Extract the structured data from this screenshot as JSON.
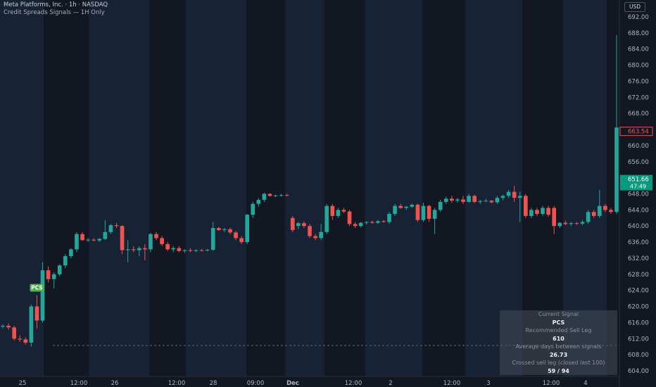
{
  "header": {
    "symbol_line": "Meta Platforms, Inc. · 1h · NASDAQ",
    "indicator_line": "Credit Spreads Signals — 1H Only",
    "currency": "USD"
  },
  "colors": {
    "background": "#131722",
    "shade_band": "#172235",
    "bull": "#26a69a",
    "bear": "#ef5350",
    "grid_text": "#b2b5be",
    "signal_badge": "#4caf50",
    "current_price_tag": "#089981",
    "high_price_tag": "#ef5350"
  },
  "signal_panel": {
    "current_signal_label": "Current Signal",
    "current_signal_value": "PCS",
    "sell_leg_label": "Recommended Sell Leg",
    "sell_leg_value": "610",
    "avg_days_label": "Average days between signals",
    "avg_days_value": "26.73",
    "crossed_label": "Crossed sell leg (closed last 100)",
    "crossed_value": "59 / 94"
  },
  "chart_data": {
    "type": "candlestick",
    "title": "Meta Platforms, Inc. · 1h · NASDAQ",
    "subtitle": "Credit Spreads Signals — 1H Only",
    "ylim": [
      603,
      695
    ],
    "y_ticks": [
      "604.00",
      "608.00",
      "612.00",
      "616.00",
      "620.00",
      "624.00",
      "628.00",
      "632.00",
      "636.00",
      "640.00",
      "644.00",
      "648.00",
      "652.00",
      "656.00",
      "660.00",
      "664.00",
      "668.00",
      "672.00",
      "676.00",
      "680.00",
      "684.00",
      "688.00",
      "692.00"
    ],
    "x_ticks": [
      "25",
      "12:00",
      "26",
      "12:00",
      "28",
      "09:00",
      "Dec",
      "12:00",
      "2",
      "12:00",
      "3",
      "12:00",
      "4"
    ],
    "candles": [
      {
        "o": 615.0,
        "h": 615.6,
        "l": 614.5,
        "c": 615.2
      },
      {
        "o": 615.2,
        "h": 615.8,
        "l": 614.2,
        "c": 614.8
      },
      {
        "o": 614.8,
        "h": 615.2,
        "l": 611.5,
        "c": 612.0
      },
      {
        "o": 612.0,
        "h": 612.8,
        "l": 611.2,
        "c": 611.8
      },
      {
        "o": 611.8,
        "h": 612.3,
        "l": 610.5,
        "c": 611.0
      },
      {
        "o": 611.0,
        "h": 620.5,
        "l": 610.0,
        "c": 620.0
      },
      {
        "o": 620.0,
        "h": 622.8,
        "l": 614.5,
        "c": 616.5
      },
      {
        "o": 616.5,
        "h": 631.0,
        "l": 616.0,
        "c": 629.0
      },
      {
        "o": 629.0,
        "h": 630.0,
        "l": 626.0,
        "c": 626.8
      },
      {
        "o": 626.8,
        "h": 628.5,
        "l": 624.5,
        "c": 628.0
      },
      {
        "o": 628.0,
        "h": 630.5,
        "l": 627.5,
        "c": 630.2
      },
      {
        "o": 630.2,
        "h": 633.0,
        "l": 629.5,
        "c": 632.5
      },
      {
        "o": 632.5,
        "h": 634.5,
        "l": 632.0,
        "c": 634.2
      },
      {
        "o": 634.2,
        "h": 638.5,
        "l": 633.5,
        "c": 638.0
      },
      {
        "o": 638.0,
        "h": 638.5,
        "l": 636.3,
        "c": 636.5
      },
      {
        "o": 636.5,
        "h": 637.0,
        "l": 636.0,
        "c": 636.6
      },
      {
        "o": 636.6,
        "h": 637.0,
        "l": 636.2,
        "c": 636.4
      },
      {
        "o": 636.4,
        "h": 637.0,
        "l": 636.0,
        "c": 636.8
      },
      {
        "o": 636.8,
        "h": 641.5,
        "l": 636.5,
        "c": 638.5
      },
      {
        "o": 638.5,
        "h": 640.5,
        "l": 638.0,
        "c": 640.2
      },
      {
        "o": 640.2,
        "h": 640.8,
        "l": 639.5,
        "c": 640.0
      },
      {
        "o": 640.0,
        "h": 640.2,
        "l": 633.0,
        "c": 634.0
      },
      {
        "o": 634.0,
        "h": 636.5,
        "l": 631.0,
        "c": 634.2
      },
      {
        "o": 634.2,
        "h": 635.0,
        "l": 633.5,
        "c": 634.0
      },
      {
        "o": 634.0,
        "h": 635.0,
        "l": 632.5,
        "c": 634.5
      },
      {
        "o": 634.5,
        "h": 635.5,
        "l": 631.5,
        "c": 634.2
      },
      {
        "o": 634.2,
        "h": 638.3,
        "l": 633.5,
        "c": 638.0
      },
      {
        "o": 638.0,
        "h": 638.5,
        "l": 636.5,
        "c": 637.0
      },
      {
        "o": 637.0,
        "h": 637.5,
        "l": 635.0,
        "c": 635.5
      },
      {
        "o": 635.5,
        "h": 636.0,
        "l": 633.8,
        "c": 634.2
      },
      {
        "o": 634.2,
        "h": 635.0,
        "l": 633.5,
        "c": 634.5
      },
      {
        "o": 634.5,
        "h": 635.0,
        "l": 633.5,
        "c": 633.8
      },
      {
        "o": 633.8,
        "h": 634.2,
        "l": 633.3,
        "c": 634.0
      },
      {
        "o": 634.0,
        "h": 634.5,
        "l": 633.5,
        "c": 633.8
      },
      {
        "o": 633.8,
        "h": 634.2,
        "l": 633.5,
        "c": 634.0
      },
      {
        "o": 634.0,
        "h": 634.3,
        "l": 633.7,
        "c": 633.9
      },
      {
        "o": 633.9,
        "h": 634.3,
        "l": 633.7,
        "c": 634.1
      },
      {
        "o": 634.1,
        "h": 641.0,
        "l": 633.8,
        "c": 639.5
      },
      {
        "o": 639.5,
        "h": 639.8,
        "l": 638.8,
        "c": 639.0
      },
      {
        "o": 639.0,
        "h": 639.5,
        "l": 638.5,
        "c": 639.2
      },
      {
        "o": 639.2,
        "h": 639.6,
        "l": 638.0,
        "c": 638.4
      },
      {
        "o": 638.4,
        "h": 638.8,
        "l": 636.5,
        "c": 637.0
      },
      {
        "o": 637.0,
        "h": 637.5,
        "l": 635.5,
        "c": 636.0
      },
      {
        "o": 636.0,
        "h": 643.0,
        "l": 635.5,
        "c": 642.8
      },
      {
        "o": 642.8,
        "h": 646.0,
        "l": 642.0,
        "c": 645.5
      },
      {
        "o": 645.5,
        "h": 647.0,
        "l": 644.8,
        "c": 646.5
      },
      {
        "o": 646.5,
        "h": 648.3,
        "l": 646.0,
        "c": 648.0
      },
      {
        "o": 648.0,
        "h": 648.2,
        "l": 647.3,
        "c": 647.5
      },
      {
        "o": 647.5,
        "h": 647.8,
        "l": 647.2,
        "c": 647.6
      },
      {
        "o": 647.6,
        "h": 648.0,
        "l": 647.3,
        "c": 647.7
      },
      {
        "o": 647.7,
        "h": 648.0,
        "l": 647.4,
        "c": 647.6
      },
      {
        "o": 642.0,
        "h": 642.5,
        "l": 638.5,
        "c": 639.0
      },
      {
        "o": 640.0,
        "h": 641.0,
        "l": 639.2,
        "c": 640.7
      },
      {
        "o": 640.7,
        "h": 641.2,
        "l": 639.5,
        "c": 640.0
      },
      {
        "o": 640.0,
        "h": 640.5,
        "l": 637.0,
        "c": 637.5
      },
      {
        "o": 637.5,
        "h": 638.0,
        "l": 636.5,
        "c": 637.0
      },
      {
        "o": 637.0,
        "h": 640.5,
        "l": 636.5,
        "c": 638.5
      },
      {
        "o": 638.5,
        "h": 645.5,
        "l": 638.0,
        "c": 645.0
      },
      {
        "o": 645.0,
        "h": 645.5,
        "l": 641.5,
        "c": 642.5
      },
      {
        "o": 642.5,
        "h": 644.5,
        "l": 642.0,
        "c": 644.0
      },
      {
        "o": 644.0,
        "h": 644.5,
        "l": 643.2,
        "c": 643.6
      },
      {
        "o": 643.6,
        "h": 644.0,
        "l": 640.0,
        "c": 640.5
      },
      {
        "o": 640.5,
        "h": 641.0,
        "l": 639.5,
        "c": 640.0
      },
      {
        "o": 640.0,
        "h": 641.0,
        "l": 639.6,
        "c": 640.8
      },
      {
        "o": 640.8,
        "h": 641.2,
        "l": 640.4,
        "c": 641.0
      },
      {
        "o": 641.0,
        "h": 641.4,
        "l": 640.6,
        "c": 640.8
      },
      {
        "o": 640.8,
        "h": 641.5,
        "l": 640.5,
        "c": 641.2
      },
      {
        "o": 641.2,
        "h": 641.5,
        "l": 640.8,
        "c": 641.0
      },
      {
        "o": 641.0,
        "h": 643.5,
        "l": 640.5,
        "c": 643.0
      },
      {
        "o": 643.0,
        "h": 645.5,
        "l": 642.5,
        "c": 645.0
      },
      {
        "o": 645.0,
        "h": 645.5,
        "l": 644.3,
        "c": 644.5
      },
      {
        "o": 644.5,
        "h": 645.0,
        "l": 644.0,
        "c": 644.8
      },
      {
        "o": 644.8,
        "h": 645.6,
        "l": 644.5,
        "c": 645.3
      },
      {
        "o": 645.3,
        "h": 645.6,
        "l": 641.0,
        "c": 641.5
      },
      {
        "o": 641.5,
        "h": 645.8,
        "l": 641.0,
        "c": 645.0
      },
      {
        "o": 645.0,
        "h": 645.3,
        "l": 641.0,
        "c": 641.8
      },
      {
        "o": 641.8,
        "h": 644.5,
        "l": 638.0,
        "c": 644.0
      },
      {
        "o": 644.0,
        "h": 646.5,
        "l": 643.5,
        "c": 646.0
      },
      {
        "o": 646.0,
        "h": 647.3,
        "l": 645.5,
        "c": 646.8
      },
      {
        "o": 646.8,
        "h": 647.5,
        "l": 645.8,
        "c": 646.3
      },
      {
        "o": 646.3,
        "h": 647.0,
        "l": 645.8,
        "c": 646.6
      },
      {
        "o": 646.6,
        "h": 647.5,
        "l": 645.5,
        "c": 646.0
      },
      {
        "o": 646.0,
        "h": 648.0,
        "l": 645.8,
        "c": 647.5
      },
      {
        "o": 647.5,
        "h": 647.8,
        "l": 645.7,
        "c": 646.0
      },
      {
        "o": 646.0,
        "h": 646.5,
        "l": 645.5,
        "c": 646.2
      },
      {
        "o": 646.2,
        "h": 646.8,
        "l": 645.9,
        "c": 646.3
      },
      {
        "o": 646.3,
        "h": 646.5,
        "l": 645.6,
        "c": 645.9
      },
      {
        "o": 645.9,
        "h": 647.5,
        "l": 645.5,
        "c": 647.0
      },
      {
        "o": 647.0,
        "h": 647.8,
        "l": 646.4,
        "c": 647.5
      },
      {
        "o": 647.5,
        "h": 649.0,
        "l": 647.0,
        "c": 648.5
      },
      {
        "o": 648.5,
        "h": 650.0,
        "l": 646.0,
        "c": 647.0
      },
      {
        "o": 647.0,
        "h": 648.5,
        "l": 641.0,
        "c": 647.5
      },
      {
        "o": 647.5,
        "h": 648.0,
        "l": 642.0,
        "c": 642.5
      },
      {
        "o": 642.5,
        "h": 644.5,
        "l": 642.0,
        "c": 644.0
      },
      {
        "o": 644.0,
        "h": 644.5,
        "l": 642.5,
        "c": 643.0
      },
      {
        "o": 643.0,
        "h": 645.0,
        "l": 642.5,
        "c": 644.5
      },
      {
        "o": 644.5,
        "h": 645.0,
        "l": 642.3,
        "c": 642.8
      },
      {
        "o": 644.5,
        "h": 645.0,
        "l": 638.0,
        "c": 640.0
      },
      {
        "o": 640.0,
        "h": 641.0,
        "l": 639.5,
        "c": 640.8
      },
      {
        "o": 640.8,
        "h": 641.3,
        "l": 640.2,
        "c": 640.5
      },
      {
        "o": 640.5,
        "h": 641.0,
        "l": 640.0,
        "c": 640.7
      },
      {
        "o": 640.7,
        "h": 641.0,
        "l": 640.3,
        "c": 640.6
      },
      {
        "o": 640.6,
        "h": 641.5,
        "l": 640.2,
        "c": 641.0
      },
      {
        "o": 641.0,
        "h": 644.0,
        "l": 640.5,
        "c": 643.5
      },
      {
        "o": 643.5,
        "h": 644.0,
        "l": 642.0,
        "c": 642.5
      },
      {
        "o": 642.5,
        "h": 649.0,
        "l": 642.0,
        "c": 645.0
      },
      {
        "o": 645.0,
        "h": 645.5,
        "l": 643.5,
        "c": 644.0
      },
      {
        "o": 644.0,
        "h": 644.5,
        "l": 643.0,
        "c": 643.5
      },
      {
        "o": 643.5,
        "h": 687.5,
        "l": 643.0,
        "c": 664.5
      }
    ],
    "markers": [
      {
        "label": "PCS",
        "candle": 6,
        "position": "above"
      }
    ],
    "horizontal_lines": [
      {
        "price": 610,
        "style": "dotted"
      }
    ],
    "price_labels": [
      {
        "price": 663.54,
        "text": "663.54",
        "style": "outline"
      },
      {
        "price": 651.66,
        "text": "651.66",
        "countdown": "47:49",
        "style": "filled"
      }
    ]
  }
}
